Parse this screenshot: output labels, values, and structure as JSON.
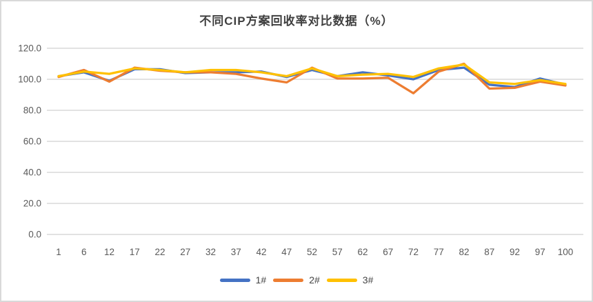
{
  "chart_data": {
    "type": "line",
    "title": "不同CIP方案回收率对比数据（%）",
    "categories": [
      "1",
      "6",
      "12",
      "17",
      "22",
      "27",
      "32",
      "37",
      "42",
      "47",
      "52",
      "57",
      "62",
      "67",
      "72",
      "77",
      "82",
      "87",
      "92",
      "97",
      "100"
    ],
    "series": [
      {
        "name": "1#",
        "color": "#4472C4",
        "values": [
          102,
          104.5,
          99,
          106.5,
          106.5,
          104,
          104.5,
          104.5,
          105,
          101.5,
          106,
          102,
          104.5,
          102.5,
          100,
          106,
          107.5,
          96.5,
          95,
          100.5,
          96.5
        ]
      },
      {
        "name": "2#",
        "color": "#ED7D31",
        "values": [
          101.5,
          106,
          98.5,
          107.5,
          105.5,
          104.5,
          104.5,
          103.5,
          100.5,
          98,
          107.5,
          100.5,
          100.5,
          101,
          91,
          105,
          110,
          94,
          94.5,
          98.5,
          96
        ]
      },
      {
        "name": "3#",
        "color": "#FFC000",
        "values": [
          102,
          105,
          103.5,
          107,
          106,
          104.5,
          106,
          106,
          104.5,
          102,
          107,
          102,
          103,
          103.5,
          101.5,
          107,
          109.5,
          98,
          97,
          99.5,
          97
        ]
      }
    ],
    "ylim": [
      0,
      120
    ],
    "ytick_step": 20,
    "ytick_labels": [
      "0.0",
      "20.0",
      "40.0",
      "60.0",
      "80.0",
      "100.0",
      "120.0"
    ],
    "xlabel": "",
    "ylabel": "",
    "grid": true,
    "legend_position": "bottom",
    "grid_color": "#d9d9d9",
    "axis_text_color": "#595959",
    "title_color": "#3f3f3f",
    "frame_border_color": "#d9d9d9"
  }
}
